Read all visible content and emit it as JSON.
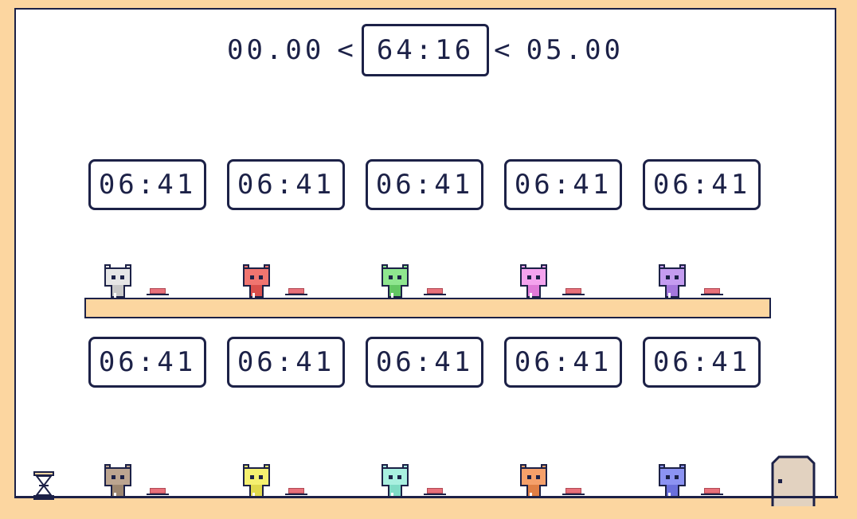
{
  "header": {
    "min_time": "00.00",
    "current_time": "64:16",
    "max_time": "05.00",
    "separator": "<"
  },
  "timers_top": [
    "06:41",
    "06:41",
    "06:41",
    "06:41",
    "06:41"
  ],
  "timers_bottom": [
    "06:41",
    "06:41",
    "06:41",
    "06:41",
    "06:41"
  ],
  "cats_top": [
    {
      "color": "#e6e6e6",
      "dark": "#c8c8c8"
    },
    {
      "color": "#f07570",
      "dark": "#d9504c"
    },
    {
      "color": "#8fe68f",
      "dark": "#63c763"
    },
    {
      "color": "#f4a3ee",
      "dark": "#e07ad8"
    },
    {
      "color": "#c49cf0",
      "dark": "#a477dd"
    }
  ],
  "cats_bottom": [
    {
      "color": "#bca590",
      "dark": "#9c8670"
    },
    {
      "color": "#f5f070",
      "dark": "#e0d94c"
    },
    {
      "color": "#a9f0e0",
      "dark": "#7fdcc6"
    },
    {
      "color": "#f5a06a",
      "dark": "#e07f44"
    },
    {
      "color": "#8c93f2",
      "dark": "#6a70dc"
    }
  ],
  "colors": {
    "outline": "#1c2147",
    "background": "#fcd6a0",
    "stage": "#ffffff",
    "button": "#e8707a",
    "door": "#e2d2c0"
  },
  "icons": {
    "hourglass": "hourglass-icon",
    "door": "exit-door-icon"
  }
}
